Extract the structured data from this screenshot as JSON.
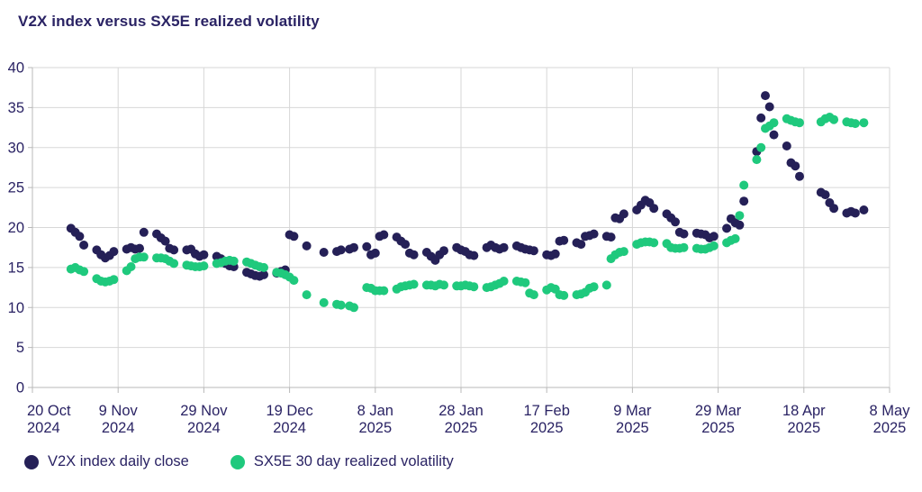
{
  "title": "V2X index versus SX5E realized volatility",
  "colors": {
    "v2x_navy": "#252057",
    "sx5e_green": "#1fc97d",
    "text_navy": "#2a2364",
    "gridline": "#d7d7d7",
    "axis": "#b8b8b8",
    "background": "#ffffff"
  },
  "chart_data": {
    "type": "scatter",
    "title": "V2X index versus SX5E realized volatility",
    "xlabel": "",
    "ylabel": "",
    "ylim": [
      0,
      40
    ],
    "y_ticks": [
      40,
      35,
      30,
      25,
      20,
      15,
      10,
      5,
      0
    ],
    "grid": true,
    "legend_position": "bottom-left",
    "x_range": [
      "2024-10-20",
      "2025-05-08"
    ],
    "x_ticks": [
      {
        "line1": "20 Oct",
        "line2": "2024"
      },
      {
        "line1": "9 Nov",
        "line2": "2024"
      },
      {
        "line1": "29 Nov",
        "line2": "2024"
      },
      {
        "line1": "19 Dec",
        "line2": "2024"
      },
      {
        "line1": "8 Jan",
        "line2": "2025"
      },
      {
        "line1": "28 Jan",
        "line2": "2025"
      },
      {
        "line1": "17 Feb",
        "line2": "2025"
      },
      {
        "line1": "9 Mar",
        "line2": "2025"
      },
      {
        "line1": "29 Mar",
        "line2": "2025"
      },
      {
        "line1": "18 Apr",
        "line2": "2025"
      },
      {
        "line1": "8 May",
        "line2": "2025"
      }
    ],
    "x": [
      "2024-10-29",
      "2024-10-30",
      "2024-10-31",
      "2024-11-01",
      "2024-11-04",
      "2024-11-05",
      "2024-11-06",
      "2024-11-07",
      "2024-11-08",
      "2024-11-11",
      "2024-11-12",
      "2024-11-13",
      "2024-11-14",
      "2024-11-15",
      "2024-11-18",
      "2024-11-19",
      "2024-11-20",
      "2024-11-21",
      "2024-11-22",
      "2024-11-25",
      "2024-11-26",
      "2024-11-27",
      "2024-11-28",
      "2024-11-29",
      "2024-12-02",
      "2024-12-03",
      "2024-12-04",
      "2024-12-05",
      "2024-12-06",
      "2024-12-09",
      "2024-12-10",
      "2024-12-11",
      "2024-12-12",
      "2024-12-13",
      "2024-12-16",
      "2024-12-17",
      "2024-12-18",
      "2024-12-19",
      "2024-12-20",
      "2024-12-23",
      "2024-12-27",
      "2024-12-30",
      "2024-12-31",
      "2025-01-02",
      "2025-01-03",
      "2025-01-06",
      "2025-01-07",
      "2025-01-08",
      "2025-01-09",
      "2025-01-10",
      "2025-01-13",
      "2025-01-14",
      "2025-01-15",
      "2025-01-16",
      "2025-01-17",
      "2025-01-20",
      "2025-01-21",
      "2025-01-22",
      "2025-01-23",
      "2025-01-24",
      "2025-01-27",
      "2025-01-28",
      "2025-01-29",
      "2025-01-30",
      "2025-01-31",
      "2025-02-03",
      "2025-02-04",
      "2025-02-05",
      "2025-02-06",
      "2025-02-07",
      "2025-02-10",
      "2025-02-11",
      "2025-02-12",
      "2025-02-13",
      "2025-02-14",
      "2025-02-17",
      "2025-02-18",
      "2025-02-19",
      "2025-02-20",
      "2025-02-21",
      "2025-02-24",
      "2025-02-25",
      "2025-02-26",
      "2025-02-27",
      "2025-02-28",
      "2025-03-03",
      "2025-03-04",
      "2025-03-05",
      "2025-03-06",
      "2025-03-07",
      "2025-03-10",
      "2025-03-11",
      "2025-03-12",
      "2025-03-13",
      "2025-03-14",
      "2025-03-17",
      "2025-03-18",
      "2025-03-19",
      "2025-03-20",
      "2025-03-21",
      "2025-03-24",
      "2025-03-25",
      "2025-03-26",
      "2025-03-27",
      "2025-03-28",
      "2025-03-31",
      "2025-04-01",
      "2025-04-02",
      "2025-04-03",
      "2025-04-04",
      "2025-04-07",
      "2025-04-08",
      "2025-04-09",
      "2025-04-10",
      "2025-04-11",
      "2025-04-14",
      "2025-04-15",
      "2025-04-16",
      "2025-04-17",
      "2025-04-22",
      "2025-04-23",
      "2025-04-24",
      "2025-04-25",
      "2025-04-28",
      "2025-04-29",
      "2025-04-30",
      "2025-05-02"
    ],
    "series": [
      {
        "name": "V2X index daily close",
        "color": "#252057",
        "values": [
          19.9,
          19.4,
          18.9,
          17.8,
          17.2,
          16.6,
          16.2,
          16.5,
          17.0,
          17.3,
          17.5,
          17.3,
          17.4,
          19.4,
          19.2,
          18.7,
          18.3,
          17.4,
          17.2,
          17.2,
          17.3,
          16.7,
          16.4,
          16.6,
          16.4,
          16.1,
          15.5,
          15.2,
          15.1,
          14.4,
          14.2,
          14.0,
          13.9,
          14.1,
          14.3,
          14.5,
          14.7,
          19.1,
          18.9,
          17.7,
          16.9,
          17.0,
          17.2,
          17.3,
          17.5,
          17.6,
          16.6,
          16.8,
          18.9,
          19.1,
          18.8,
          18.3,
          17.9,
          16.8,
          16.6,
          16.9,
          16.4,
          15.9,
          16.6,
          17.1,
          17.5,
          17.2,
          17.0,
          16.6,
          16.5,
          17.5,
          17.8,
          17.5,
          17.3,
          17.5,
          17.7,
          17.5,
          17.3,
          17.2,
          17.1,
          16.6,
          16.5,
          16.7,
          18.3,
          18.4,
          18.1,
          17.9,
          18.9,
          19.0,
          19.2,
          18.9,
          18.8,
          21.2,
          21.1,
          21.7,
          22.2,
          22.8,
          23.4,
          23.1,
          22.4,
          21.7,
          21.2,
          20.7,
          19.4,
          19.2,
          19.3,
          19.2,
          19.1,
          18.7,
          18.9,
          19.9,
          21.1,
          20.6,
          20.3,
          23.3,
          29.5,
          33.7,
          36.5,
          35.1,
          31.6,
          30.2,
          28.1,
          27.7,
          26.4,
          24.4,
          24.1,
          23.1,
          22.4,
          21.8,
          22.0,
          21.8,
          22.2
        ]
      },
      {
        "name": "SX5E 30 day realized volatility",
        "color": "#1fc97d",
        "values": [
          14.8,
          15.0,
          14.7,
          14.5,
          13.6,
          13.3,
          13.2,
          13.3,
          13.5,
          14.6,
          15.1,
          16.1,
          16.3,
          16.3,
          16.2,
          16.2,
          16.1,
          15.8,
          15.5,
          15.3,
          15.2,
          15.1,
          15.1,
          15.2,
          15.5,
          15.6,
          15.8,
          15.9,
          15.8,
          15.7,
          15.5,
          15.3,
          15.1,
          15.0,
          14.4,
          14.3,
          14.1,
          13.8,
          13.4,
          11.6,
          10.6,
          10.4,
          10.3,
          10.2,
          10.0,
          12.5,
          12.4,
          12.1,
          12.1,
          12.1,
          12.3,
          12.6,
          12.7,
          12.8,
          12.9,
          12.8,
          12.8,
          12.7,
          12.9,
          12.8,
          12.7,
          12.7,
          12.8,
          12.7,
          12.6,
          12.5,
          12.6,
          12.8,
          13.0,
          13.3,
          13.3,
          13.2,
          13.1,
          11.8,
          11.6,
          12.2,
          12.5,
          12.3,
          11.6,
          11.5,
          11.6,
          11.7,
          11.9,
          12.4,
          12.6,
          12.8,
          16.1,
          16.6,
          16.9,
          17.0,
          17.9,
          18.1,
          18.2,
          18.2,
          18.1,
          18.0,
          17.5,
          17.4,
          17.4,
          17.5,
          17.4,
          17.3,
          17.3,
          17.5,
          17.7,
          18.1,
          18.4,
          18.6,
          21.5,
          25.3,
          28.5,
          30.0,
          32.4,
          32.7,
          33.1,
          33.6,
          33.4,
          33.2,
          33.1,
          33.2,
          33.6,
          33.8,
          33.5,
          33.2,
          33.1,
          33.0,
          33.1
        ]
      }
    ]
  }
}
